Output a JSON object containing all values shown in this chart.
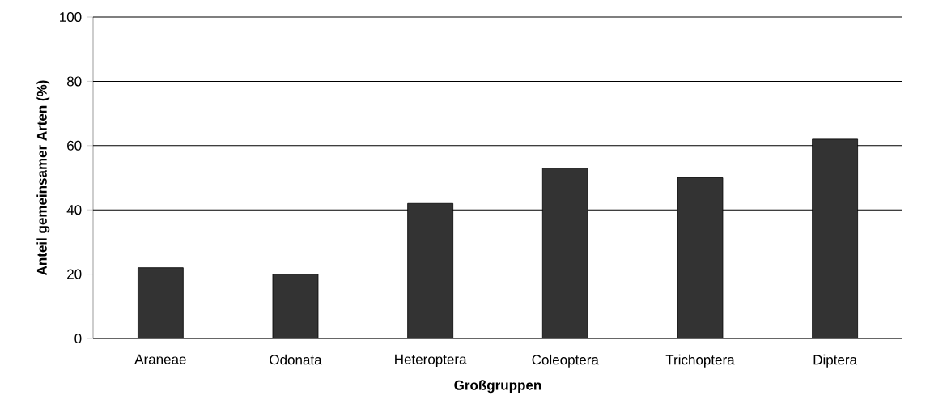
{
  "chart_data": {
    "type": "bar",
    "xlabel": "Großgruppen",
    "ylabel": "Anteil gemeinsamer Arten (%)",
    "categories": [
      "Araneae",
      "Odonata",
      "Heteroptera",
      "Coleoptera",
      "Trichoptera",
      "Diptera"
    ],
    "values": [
      22,
      20,
      42,
      53,
      50,
      62
    ],
    "color": "#333333",
    "ylim": [
      0,
      100
    ],
    "yticks": [
      0,
      20,
      40,
      60,
      80,
      100
    ],
    "grid": "y"
  }
}
